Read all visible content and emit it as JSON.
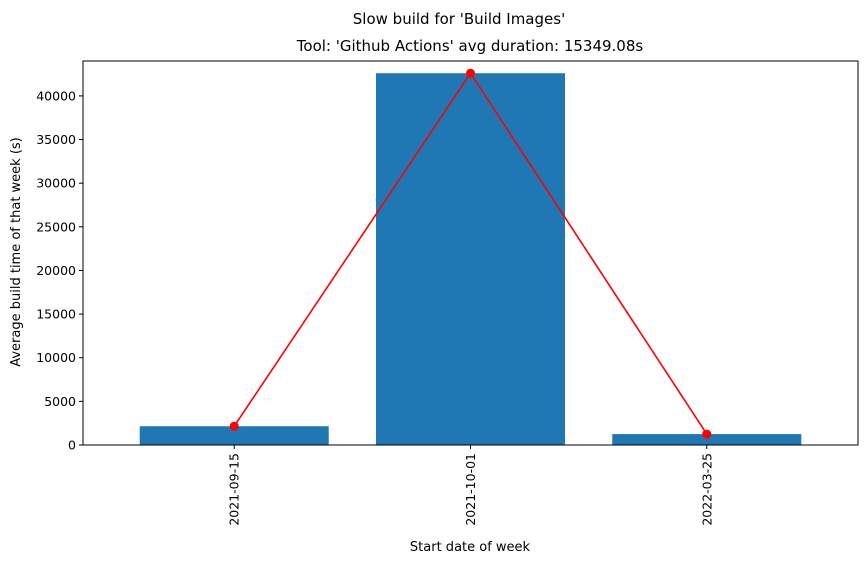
{
  "chart_data": {
    "type": "bar",
    "suptitle": "Slow build for 'Build Images'",
    "title": "Tool: 'Github Actions' avg duration: 15349.08s",
    "xlabel": "Start date of week",
    "ylabel": "Average build time of that week (s)",
    "categories": [
      "2021-09-15",
      "2021-10-01",
      "2022-03-25"
    ],
    "series": [
      {
        "type": "bar",
        "values": [
          2150,
          42600,
          1250
        ],
        "color": "#1f77b4"
      },
      {
        "type": "line",
        "values": [
          2150,
          42600,
          1250
        ],
        "color": "#ff0000",
        "marker": "circle"
      }
    ],
    "ylim": [
      0,
      44000
    ],
    "yticks": [
      0,
      5000,
      10000,
      15000,
      20000,
      25000,
      30000,
      35000,
      40000
    ],
    "ytick_labels": [
      "0",
      "5000",
      "10000",
      "15000",
      "20000",
      "25000",
      "30000",
      "35000",
      "40000"
    ],
    "grid": false,
    "xtick_rotation": 90
  }
}
